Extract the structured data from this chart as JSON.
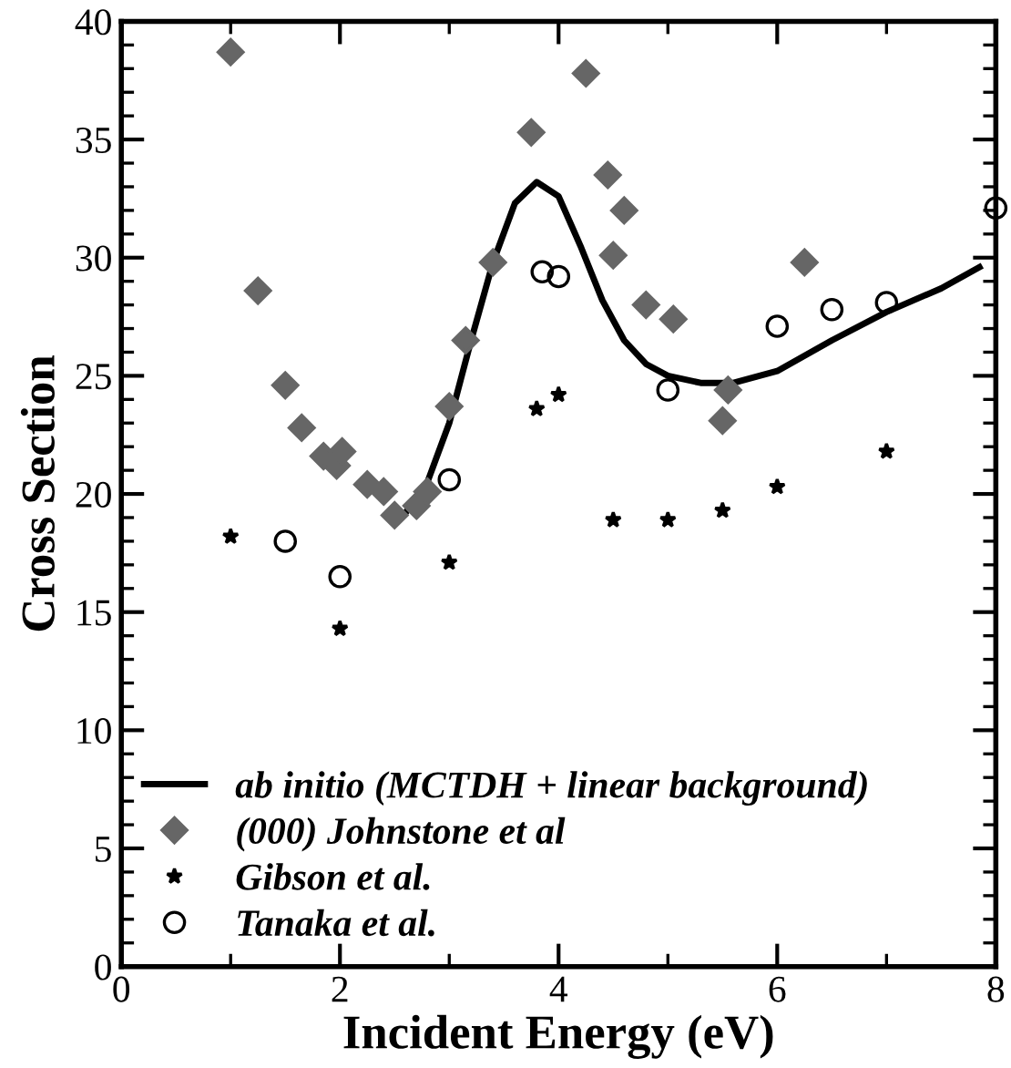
{
  "chart_data": {
    "type": "scatter",
    "xlabel": "Incident Energy (eV)",
    "ylabel": "Cross Section",
    "xlim": [
      0,
      8
    ],
    "ylim": [
      0,
      40
    ],
    "xticks": [
      0,
      2,
      4,
      6,
      8
    ],
    "yticks": [
      0,
      5,
      10,
      15,
      20,
      25,
      30,
      35,
      40
    ],
    "grid": false,
    "legend": "bottom left",
    "series": [
      {
        "name": "ab initio (MCTDH + linear background)",
        "type": "line",
        "color": "#000000",
        "marker": "none",
        "line_style": "solid",
        "x": [
          2.6,
          2.8,
          3.0,
          3.2,
          3.4,
          3.6,
          3.8,
          4.0,
          4.2,
          4.4,
          4.6,
          4.8,
          5.0,
          5.3,
          5.6,
          6.0,
          6.5,
          7.0,
          7.5,
          7.85
        ],
        "values": [
          19.2,
          20.5,
          23.0,
          26.5,
          29.8,
          32.3,
          33.2,
          32.6,
          30.5,
          28.2,
          26.5,
          25.5,
          25.0,
          24.7,
          24.7,
          25.2,
          26.5,
          27.7,
          28.7,
          29.6
        ]
      },
      {
        "name": "(000) Johnstone et al",
        "color": "#666666",
        "marker": "diamond",
        "x": [
          1.0,
          1.25,
          1.5,
          1.65,
          1.85,
          1.97,
          2.02,
          2.25,
          2.4,
          2.5,
          2.7,
          2.8,
          3.0,
          3.15,
          3.4,
          3.75,
          4.25,
          4.45,
          4.6,
          4.5,
          4.8,
          5.05,
          5.55,
          5.5,
          6.25
        ],
        "values": [
          38.7,
          28.6,
          24.6,
          22.8,
          21.6,
          21.2,
          21.8,
          20.4,
          20.1,
          19.1,
          19.5,
          20.1,
          23.7,
          26.5,
          29.8,
          35.3,
          37.8,
          33.5,
          32.0,
          30.1,
          28.0,
          27.4,
          24.4,
          23.1,
          29.8
        ]
      },
      {
        "name": "Gibson et al.",
        "color": "#000000",
        "marker": "star",
        "x": [
          1,
          2,
          3,
          3.8,
          4.0,
          4.5,
          5.0,
          5.5,
          6.0,
          7.0
        ],
        "values": [
          18.2,
          14.3,
          17.1,
          23.6,
          24.2,
          18.9,
          18.9,
          19.3,
          20.3,
          21.8
        ]
      },
      {
        "name": "Tanaka et al.",
        "color": "#000000",
        "marker": "circle",
        "x": [
          1.5,
          2.0,
          3.0,
          3.85,
          4.0,
          5.0,
          6.0,
          6.5,
          7.0,
          8.0
        ],
        "values": [
          18.0,
          16.5,
          20.6,
          29.4,
          29.2,
          24.4,
          27.1,
          27.8,
          28.1,
          32.1
        ]
      }
    ]
  }
}
